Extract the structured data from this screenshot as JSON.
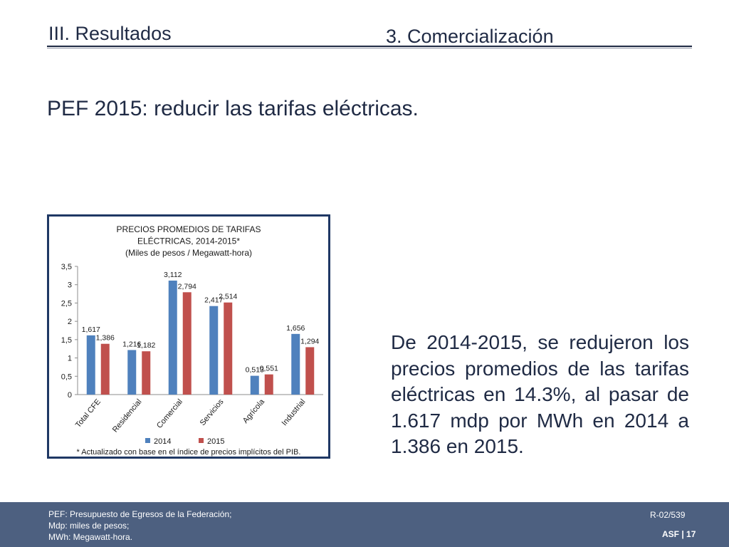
{
  "header": {
    "section": "III. Resultados",
    "subsection": "3. Comercialización"
  },
  "headline": "PEF 2015: reducir las tarifas eléctricas.",
  "body_text": "De 2014-2015, se redujeron los precios promedios de las tarifas eléctricas en 14.3%, al pasar de 1.617 mdp por MWh en 2014 a 1.386 en 2015.",
  "chart_data": {
    "type": "bar",
    "title_lines": [
      "PRECIOS PROMEDIOS DE TARIFAS",
      "ELÉCTRICAS, 2014-2015*",
      "(Miles de pesos / Megawatt-hora)"
    ],
    "categories": [
      "Total CFE",
      "Residencial",
      "Comercial",
      "Servicios",
      "Agrícola",
      "Industrial"
    ],
    "series": [
      {
        "name": "2014",
        "color": "#4f81bd",
        "values": [
          1.617,
          1.216,
          3.112,
          2.417,
          0.513,
          1.656
        ],
        "labels": [
          "1,617",
          "1,216",
          "3,112",
          "2,417",
          "0,513",
          "1,656"
        ]
      },
      {
        "name": "2015",
        "color": "#c0504d",
        "values": [
          1.386,
          1.182,
          2.794,
          2.514,
          0.551,
          1.294
        ],
        "labels": [
          "1,386",
          "1,182",
          "2,794",
          "2,514",
          "0,551",
          "1,294"
        ]
      }
    ],
    "ylim": [
      0,
      3.5
    ],
    "yticks": [
      0,
      0.5,
      1,
      1.5,
      2,
      2.5,
      3,
      3.5
    ],
    "ytick_labels": [
      "0",
      "0,5",
      "1",
      "1,5",
      "2",
      "2,5",
      "3",
      "3,5"
    ],
    "legend_position": "bottom",
    "grid": false,
    "note": "* Actualizado con base en el índice de precios implícitos del PIB."
  },
  "footer": {
    "lines": [
      "PEF: Presupuesto de Egresos de la Federación;",
      "Mdp: miles de pesos;",
      "MWh: Megawatt-hora."
    ],
    "code": "R-02/539",
    "page": "ASF | 17"
  }
}
